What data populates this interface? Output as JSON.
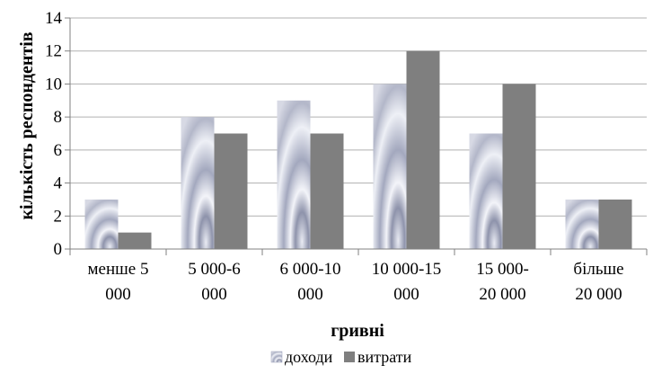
{
  "chart_data": {
    "type": "bar",
    "categories": [
      [
        "менше 5",
        "000"
      ],
      [
        "5 000-6",
        "000"
      ],
      [
        "6 000-10",
        "000"
      ],
      [
        "10 000-15",
        "000"
      ],
      [
        "15 000-",
        "20 000"
      ],
      [
        "більше",
        "20 000"
      ]
    ],
    "series": [
      {
        "name": "доходи",
        "values": [
          3,
          8,
          9,
          10,
          7,
          3
        ],
        "color": "#9aa0b8",
        "style": "gradient"
      },
      {
        "name": "витрати",
        "values": [
          1,
          7,
          7,
          12,
          10,
          3
        ],
        "color": "#7f7f7f",
        "style": "solid"
      }
    ],
    "xlabel": "гривні",
    "ylabel": "кількість респондентів",
    "ylim": [
      0,
      14
    ],
    "yticks": [
      0,
      2,
      4,
      6,
      8,
      10,
      12,
      14
    ],
    "grid": true,
    "legend": "bottom"
  }
}
